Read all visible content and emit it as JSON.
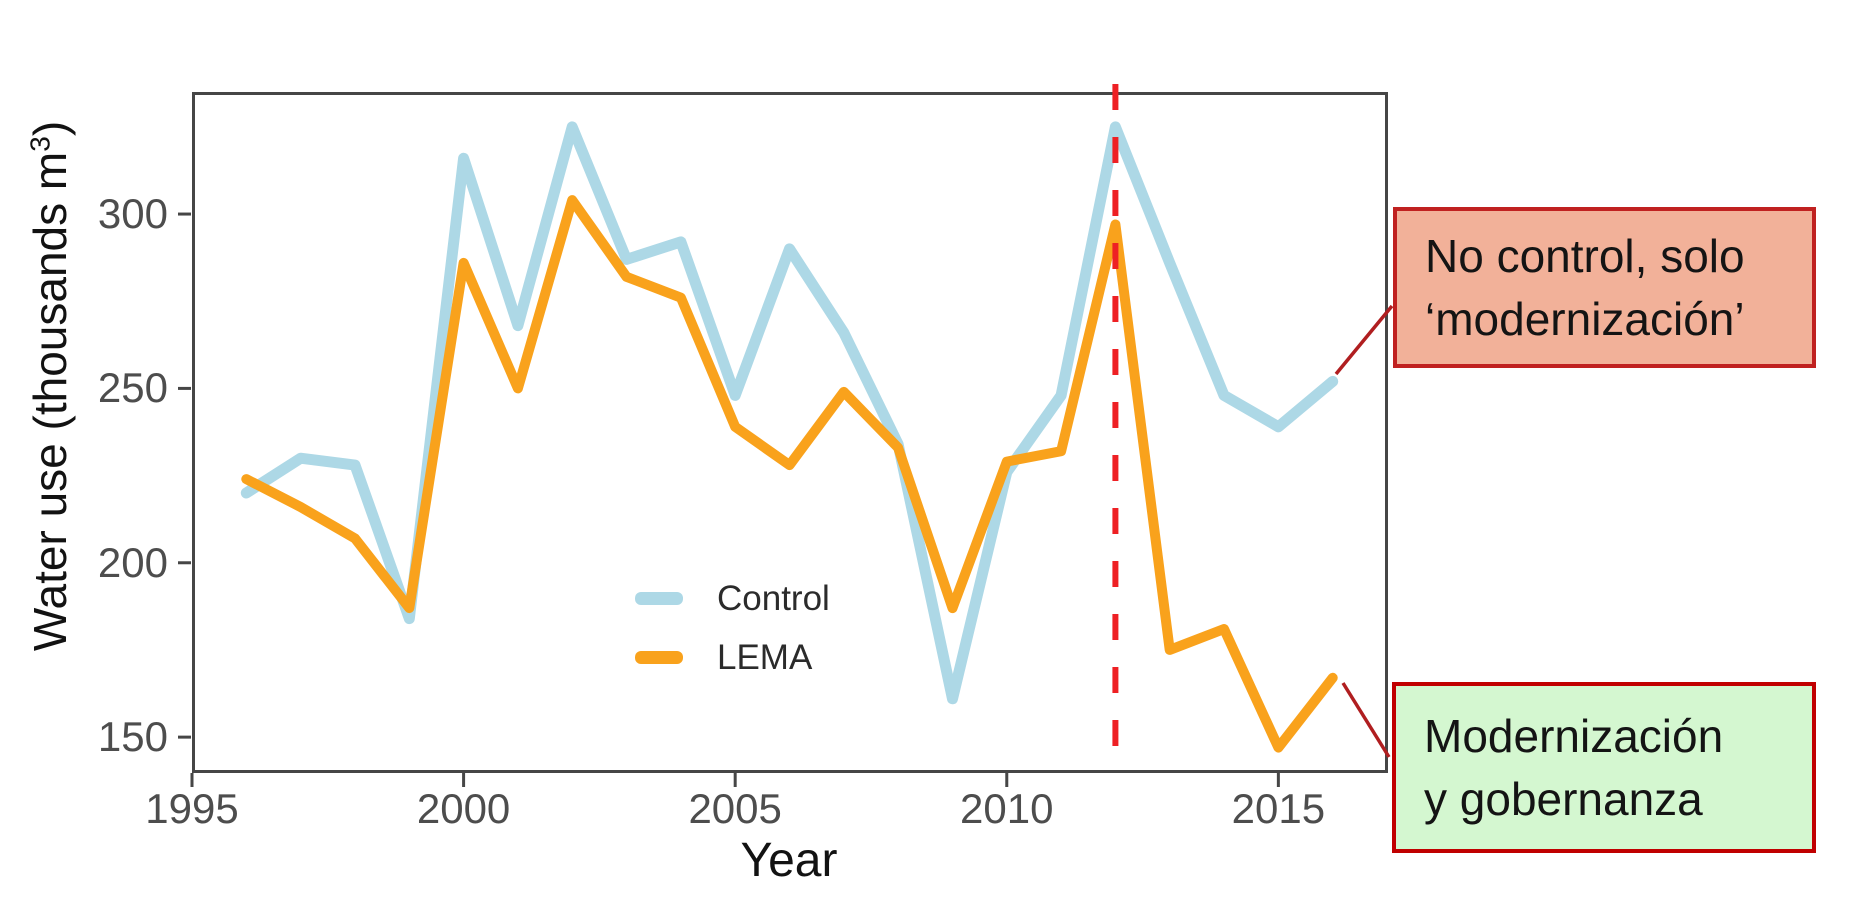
{
  "chart_data": {
    "type": "line",
    "title": "",
    "xlabel": "Year",
    "ylabel": "Water use (thousands m³)",
    "ylabel_parts": {
      "pre": "Water use (thousands m",
      "sup": "3",
      "post": ")"
    },
    "xlim": [
      1995,
      2017
    ],
    "ylim": [
      140,
      335
    ],
    "x_ticks": [
      1995,
      2000,
      2005,
      2010,
      2015
    ],
    "y_ticks": [
      150,
      200,
      250,
      300
    ],
    "grid": false,
    "legend_position": "inside-lower-middle",
    "x": [
      1996,
      1997,
      1998,
      1999,
      2000,
      2001,
      2002,
      2003,
      2004,
      2005,
      2006,
      2007,
      2008,
      2009,
      2010,
      2011,
      2012,
      2013,
      2014,
      2015,
      2016
    ],
    "series": [
      {
        "name": "Control",
        "color": "#ADD8E6",
        "values": [
          220,
          230,
          228,
          184,
          316,
          268,
          325,
          287,
          292,
          248,
          290,
          266,
          234,
          161,
          226,
          248,
          325,
          286,
          248,
          239,
          252
        ]
      },
      {
        "name": "LEMA",
        "color": "#F9A21C",
        "values": [
          224,
          216,
          207,
          187,
          286,
          250,
          304,
          282,
          276,
          239,
          228,
          249,
          233,
          187,
          229,
          232,
          297,
          175,
          181,
          147,
          167
        ]
      }
    ],
    "vline": {
      "x": 2012,
      "color": "#EE2024",
      "style": "dashed"
    }
  },
  "axis": {
    "line_color": "#464646",
    "tick_label_color": "#4d4d4d"
  },
  "annotations": {
    "connector_color": "#B01E20",
    "no_control": {
      "line1": "No control, solo",
      "line2": "‘modernización’",
      "bg": "#F2B199",
      "border": "#C02120"
    },
    "modernizacion": {
      "line1": "Modernización",
      "line2": "y gobernanza",
      "bg": "#D4F7D0",
      "border": "#C00000"
    }
  }
}
